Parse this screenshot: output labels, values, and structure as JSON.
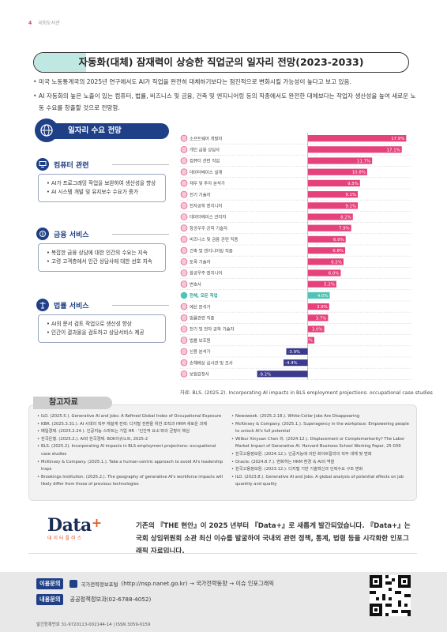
{
  "header": {
    "page_number": "4",
    "publication": "국회도서관"
  },
  "title": "자동화(대체) 잠재력이 상승한 직업군의 일자리 전망(2023-2033)",
  "bullets": [
    "미국 노동통계국의 2025년 연구에서도 AI가 직업을 완전히 대체하기보다는 점진적으로 변화시킬 가능성이 높다고 보고 있음.",
    "AI 자동화의 높은 노출이 있는 컴퓨터, 법률, 비즈니스 및 금융, 건축 및 엔지니어링 등의 직종에서도 완전한 대체보다는 작업자 생산성을 높여 새로운 노동 수요를 창출할 것으로 전망함."
  ],
  "left_panel": {
    "heading": "일자리 수요 전망",
    "sections": [
      {
        "title": "컴퓨터 관련",
        "icon": "computer-icon",
        "items": [
          "AI가 프로그래밍 작업을 보완하여 생산성을 향상",
          "AI 시스템 개발 및 유지보수 수요가 증가"
        ]
      },
      {
        "title": "금융 서비스",
        "icon": "money-icon",
        "items": [
          "복잡한 금융 상담에 대한 인간의 수요는 지속",
          "고령 고객층에서 인간 상담사에 대한 선호 지속"
        ]
      },
      {
        "title": "법률 서비스",
        "icon": "scale-icon",
        "items": [
          "AI의 문서 검토 작업으로 생산성 향상",
          "인간이 결과물을 검토하고 상담서비스 제공"
        ]
      }
    ]
  },
  "chart_data": {
    "type": "bar",
    "orientation": "horizontal",
    "categories": [
      "소프트웨어 개발자",
      "개인 금융 상담사",
      "컴퓨터 관련 직업",
      "데이터베이스 설계",
      "재무 및 투자 분석가",
      "전기 기술자",
      "전자공학 엔지니어",
      "데이터베이스 관리자",
      "항공우주 공학 기술자",
      "비즈니스 및 금융 관련 직종",
      "건축 및 엔지니어링 직종",
      "토목 기술자",
      "항공우주 엔지니어",
      "변호사",
      "전체, 모든 직업",
      "예산 분석가",
      "법률관련 직종",
      "전기 및 전자 공학 기술자",
      "법률 보조원",
      "신용 분석가",
      "손해배상 심사관 및 조사",
      "보험감정사"
    ],
    "values": [
      17.9,
      17.1,
      11.7,
      10.8,
      9.5,
      9.1,
      9.1,
      8.2,
      7.9,
      6.9,
      6.8,
      6.5,
      6.0,
      5.2,
      4.0,
      3.9,
      3.7,
      3.0,
      1.2,
      -3.9,
      -4.4,
      -9.2
    ],
    "value_labels": [
      "17.9%",
      "17.1%",
      "11.7%",
      "10.8%",
      "9.5%",
      "9.1%",
      "9.1%",
      "8.2%",
      "7.9%",
      "6.9%",
      "6.8%",
      "6.5%",
      "6.0%",
      "5.2%",
      "4.0%",
      "3.9%",
      "3.7%",
      "3.0%",
      "1.2%",
      "-3.9%",
      "-4.4%",
      "-9.2%"
    ],
    "highlight_index": 14,
    "xlim": [
      -10,
      19
    ],
    "colors": {
      "positive": "#e5417a",
      "negative": "#3b3a8c",
      "highlight": "#4fc3b6"
    },
    "title": "",
    "xlabel": "",
    "ylabel": ""
  },
  "source": "자료: BLS. (2025.2). Incorporating AI impacts in BLS employment projections: occupational case studies",
  "references": {
    "title": "참고자료",
    "left": [
      "ILO. (2025.5.). Generative AI and Jobs: A Refined Global Index of Occupational Exposure",
      "KBR. (2025.3.31.). AI 시대의 직무 재설계 전략: 디지털 전환을 위한 조직과 HRM 새로운 과제",
      "매일경제. (2025.2.24.). 인공지능 스마트는 기업 HR · '인간적 요소'와의 균형이 핵심",
      "한국은행. (2025.2.). AI와 한국경제. BOK이슈노트, 2025-2",
      "BLS. (2025.2). Incorporating AI impacts in BLS employment projections: occupational case studies",
      "McKinsey & Company. (2025.1.). Take a human-centric approach to avoid AI's leadership traps",
      "Brookings Institution. (2025.2.). The geography of generative AI's workforce impacts will likely differ from those of previous technologies"
    ],
    "right": [
      "Newsweek. (2025.2.18.). White-Collar Jobs Are Disappearing",
      "McKinsey & Company. (2025.1.). Superagency in the workplace: Empowering people to unlock AI's full potential",
      "Wilbur Xinyuan Chen 외. (2024.12.). Displacement or Complementarity? The Labor Market Impact of Generative AI. Harvard Business School Working Paper, 25-039",
      "한국고용정보원. (2024.12.). 인공지능에 의한 화이트칼라의 직무 대체 및 변화",
      "Oracle. (2024.8.7.). 변화하는 HRM 환경 속 AI의 역할",
      "한국고용정보원. (2023.12.). 디지털 기반 기술혁신과 인력수요 구조 변화",
      "ILO. (2023.8.). Generative AI and Jobs: A global analysis of potential effects on job quantity and quality"
    ]
  },
  "dataplus": {
    "logo": "Data",
    "logo_plus": "+",
    "logo_sub": "데이터플러스",
    "text": "기존의 『THE 현안』이 2025 년부터 『Data+』로 새롭게 발간되었습니다. 『Data+』는 국회 상임위원회 소관 최신 이슈를 발굴하여 국내외 관련 정책, 통계, 법령 등을 시각화한 인포그래픽 자료입니다."
  },
  "footer": {
    "usage_label": "이용문의",
    "usage_site": "국가전략정보포털",
    "usage_text": "(http://nsp.nanet.go.kr) → 국가전략동향 → 이슈 인포그래픽",
    "contact_label": "내용문의",
    "contact_text": "공공정책정보과(02-6788-4052)",
    "issn": "발간등록번호 31-9720113-002144-14  |  ISSN 3059-0159"
  }
}
